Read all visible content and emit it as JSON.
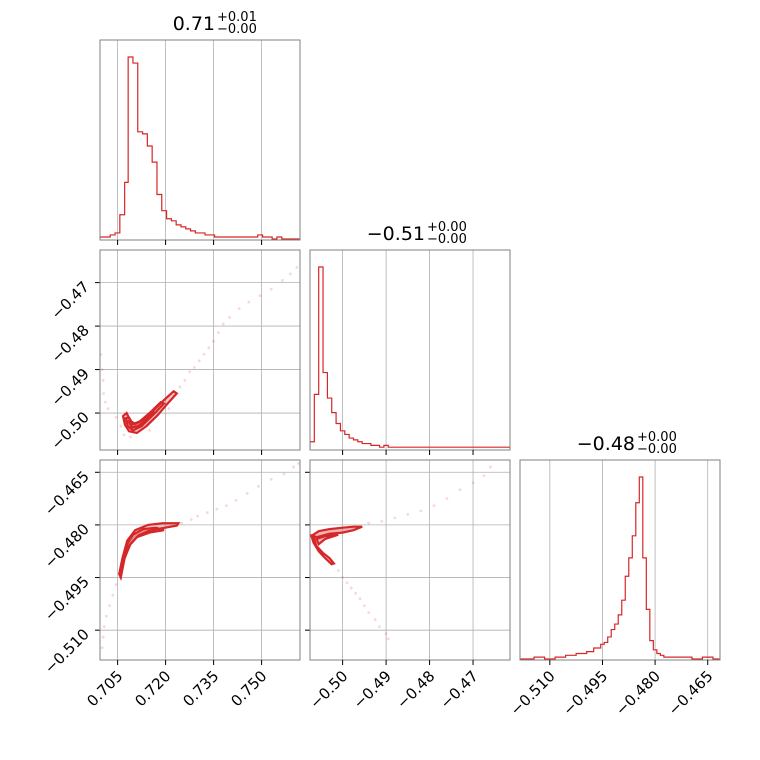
{
  "chart_data": {
    "type": "corner",
    "line_color": "#d62728",
    "grid": true,
    "panels": [
      {
        "kind": "hist",
        "row": 0,
        "col": 0,
        "title": {
          "value": "0.71",
          "plus": "+0.01",
          "minus": "−0.00"
        },
        "xlim": [
          0.6995,
          0.762
        ],
        "x_ticks": [
          0.705,
          0.72,
          0.735,
          0.75
        ],
        "x_tick_labels": [],
        "hist": {
          "bin_edges": [
            0.6995,
            0.7012,
            0.7027,
            0.7042,
            0.7057,
            0.7072,
            0.7083,
            0.7098,
            0.7113,
            0.7128,
            0.7143,
            0.7158,
            0.7173,
            0.7188,
            0.7203,
            0.7218,
            0.7233,
            0.7248,
            0.7263,
            0.7278,
            0.7293,
            0.7308,
            0.7323,
            0.7338,
            0.7353,
            0.7368,
            0.7383,
            0.7398,
            0.7413,
            0.7428,
            0.7443,
            0.7458,
            0.7473,
            0.7488,
            0.7503,
            0.7518,
            0.7533,
            0.7548,
            0.7563,
            0.762
          ],
          "counts": [
            1,
            1,
            2,
            3,
            12,
            28,
            90,
            87,
            53,
            52,
            46,
            38,
            22,
            14,
            10,
            9,
            7,
            6,
            5,
            4,
            3,
            3,
            2,
            2,
            1,
            1,
            1,
            1,
            1,
            1,
            1,
            1,
            1,
            2,
            1,
            1,
            0,
            1,
            0
          ]
        }
      },
      {
        "kind": "hist",
        "row": 1,
        "col": 1,
        "title": {
          "value": "−0.51",
          "plus": "+0.00",
          "minus": "−0.00"
        },
        "xlim": [
          -0.5075,
          -0.4615
        ],
        "x_ticks": [
          -0.5,
          -0.49,
          -0.48,
          -0.47
        ],
        "x_tick_labels": [],
        "hist": {
          "bin_edges": [
            -0.5075,
            -0.5065,
            -0.5055,
            -0.5045,
            -0.5035,
            -0.5025,
            -0.5015,
            -0.5005,
            -0.4995,
            -0.4985,
            -0.4975,
            -0.4965,
            -0.4955,
            -0.4945,
            -0.4935,
            -0.4925,
            -0.4915,
            -0.4905,
            -0.4895,
            -0.4885,
            -0.4875,
            -0.4855,
            -0.4835,
            -0.4615
          ],
          "counts": [
            4,
            30,
            100,
            42,
            28,
            20,
            14,
            10,
            8,
            6,
            5,
            4,
            3,
            3,
            2,
            2,
            1,
            2,
            1,
            1,
            1,
            1,
            1
          ]
        }
      },
      {
        "kind": "hist",
        "row": 2,
        "col": 2,
        "title": {
          "value": "−0.48",
          "plus": "+0.00",
          "minus": "−0.00"
        },
        "xlim": [
          -0.5185,
          -0.4615
        ],
        "x_ticks": [
          -0.51,
          -0.495,
          -0.48,
          -0.465
        ],
        "x_tick_labels": [
          "−0.510",
          "−0.495",
          "−0.480",
          "−0.465"
        ],
        "hist": {
          "bin_edges": [
            -0.5185,
            -0.5145,
            -0.5115,
            -0.5085,
            -0.5055,
            -0.5025,
            -0.4995,
            -0.4975,
            -0.4955,
            -0.4945,
            -0.4935,
            -0.4925,
            -0.4915,
            -0.4905,
            -0.4895,
            -0.4885,
            -0.4875,
            -0.4865,
            -0.4855,
            -0.4845,
            -0.4835,
            -0.4825,
            -0.4815,
            -0.4805,
            -0.4795,
            -0.4785,
            -0.4775,
            -0.4755,
            -0.4725,
            -0.4695,
            -0.4665,
            -0.4635,
            -0.4615
          ],
          "counts": [
            0,
            1,
            0,
            1,
            2,
            3,
            4,
            6,
            8,
            9,
            12,
            16,
            19,
            24,
            32,
            45,
            55,
            67,
            85,
            99,
            55,
            27,
            10,
            5,
            3,
            2,
            1,
            1,
            1,
            0,
            1,
            0
          ]
        }
      },
      {
        "kind": "scatter",
        "row": 1,
        "col": 0,
        "xlim": [
          0.6995,
          0.762
        ],
        "ylim": [
          -0.5085,
          -0.4625
        ],
        "x_ticks": [
          0.705,
          0.72,
          0.735,
          0.75
        ],
        "y_ticks": [
          -0.47,
          -0.48,
          -0.49,
          -0.5
        ],
        "y_tick_labels": [
          "−0.47",
          "−0.48",
          "−0.49",
          "−0.50"
        ],
        "x_tick_labels": [],
        "contour_paths": [
          [
            [
              0.7067,
              -0.5007
            ],
            [
              0.7073,
              -0.5027
            ],
            [
              0.7086,
              -0.5042
            ],
            [
              0.711,
              -0.5046
            ],
            [
              0.714,
              -0.503
            ],
            [
              0.7175,
              -0.5005
            ],
            [
              0.721,
              -0.4975
            ],
            [
              0.7235,
              -0.4955
            ],
            [
              0.7225,
              -0.495
            ],
            [
              0.7195,
              -0.497
            ],
            [
              0.716,
              -0.4995
            ],
            [
              0.713,
              -0.5015
            ],
            [
              0.7105,
              -0.5025
            ],
            [
              0.709,
              -0.5018
            ],
            [
              0.7078,
              -0.5
            ],
            [
              0.7067,
              -0.5007
            ]
          ],
          [
            [
              0.7075,
              -0.5012
            ],
            [
              0.7082,
              -0.503
            ],
            [
              0.7098,
              -0.504
            ],
            [
              0.7125,
              -0.503
            ],
            [
              0.716,
              -0.5005
            ],
            [
              0.7195,
              -0.4978
            ],
            [
              0.7185,
              -0.4975
            ],
            [
              0.715,
              -0.5
            ],
            [
              0.7118,
              -0.502
            ],
            [
              0.7098,
              -0.5025
            ],
            [
              0.7085,
              -0.501
            ],
            [
              0.7075,
              -0.5012
            ]
          ],
          [
            [
              0.7085,
              -0.502
            ],
            [
              0.7095,
              -0.5033
            ],
            [
              0.7115,
              -0.503
            ],
            [
              0.714,
              -0.5015
            ],
            [
              0.7165,
              -0.4998
            ],
            [
              0.715,
              -0.5002
            ],
            [
              0.712,
              -0.502
            ],
            [
              0.71,
              -0.5025
            ],
            [
              0.7085,
              -0.502
            ]
          ]
        ],
        "scatter_points": [
          [
            0.6998,
            -0.4865
          ],
          [
            0.7002,
            -0.49
          ],
          [
            0.7005,
            -0.4925
          ],
          [
            0.7006,
            -0.4955
          ],
          [
            0.7012,
            -0.4975
          ],
          [
            0.702,
            -0.499
          ],
          [
            0.7045,
            -0.501
          ],
          [
            0.706,
            -0.503
          ],
          [
            0.707,
            -0.505
          ],
          [
            0.709,
            -0.5055
          ],
          [
            0.715,
            -0.504
          ],
          [
            0.721,
            -0.499
          ],
          [
            0.7225,
            -0.496
          ],
          [
            0.7245,
            -0.494
          ],
          [
            0.726,
            -0.4925
          ],
          [
            0.7275,
            -0.4905
          ],
          [
            0.729,
            -0.4895
          ],
          [
            0.7305,
            -0.488
          ],
          [
            0.732,
            -0.4865
          ],
          [
            0.7335,
            -0.485
          ],
          [
            0.735,
            -0.4835
          ],
          [
            0.7365,
            -0.4815
          ],
          [
            0.738,
            -0.4795
          ],
          [
            0.74,
            -0.478
          ],
          [
            0.743,
            -0.476
          ],
          [
            0.746,
            -0.4745
          ],
          [
            0.7495,
            -0.473
          ],
          [
            0.753,
            -0.4715
          ],
          [
            0.7565,
            -0.4695
          ],
          [
            0.759,
            -0.468
          ],
          [
            0.761,
            -0.4665
          ]
        ]
      },
      {
        "kind": "scatter",
        "row": 2,
        "col": 0,
        "xlim": [
          0.6995,
          0.762
        ],
        "ylim": [
          -0.5185,
          -0.4615
        ],
        "x_ticks": [
          0.705,
          0.72,
          0.735,
          0.75
        ],
        "x_tick_labels": [
          "0.705",
          "0.720",
          "0.735",
          "0.750"
        ],
        "y_ticks": [
          -0.465,
          -0.48,
          -0.495,
          -0.51
        ],
        "y_tick_labels": [
          "−0.465",
          "−0.480",
          "−0.495",
          "−0.510"
        ],
        "contour_paths": [
          [
            [
              0.706,
              -0.495
            ],
            [
              0.7072,
              -0.4895
            ],
            [
              0.709,
              -0.4855
            ],
            [
              0.7115,
              -0.483
            ],
            [
              0.7145,
              -0.4818
            ],
            [
              0.7185,
              -0.481
            ],
            [
              0.7235,
              -0.4802
            ],
            [
              0.724,
              -0.4795
            ],
            [
              0.719,
              -0.4795
            ],
            [
              0.7145,
              -0.48
            ],
            [
              0.7105,
              -0.4815
            ],
            [
              0.708,
              -0.4845
            ],
            [
              0.7065,
              -0.4895
            ],
            [
              0.7055,
              -0.494
            ],
            [
              0.706,
              -0.495
            ]
          ],
          [
            [
              0.707,
              -0.49
            ],
            [
              0.7085,
              -0.486
            ],
            [
              0.711,
              -0.4835
            ],
            [
              0.715,
              -0.4822
            ],
            [
              0.7195,
              -0.4815
            ],
            [
              0.717,
              -0.4808
            ],
            [
              0.713,
              -0.4812
            ],
            [
              0.7098,
              -0.4828
            ],
            [
              0.708,
              -0.4855
            ],
            [
              0.7068,
              -0.4895
            ],
            [
              0.707,
              -0.49
            ]
          ]
        ],
        "scatter_points": [
          [
            0.7002,
            -0.515
          ],
          [
            0.7005,
            -0.512
          ],
          [
            0.7008,
            -0.509
          ],
          [
            0.7015,
            -0.506
          ],
          [
            0.7025,
            -0.503
          ],
          [
            0.7035,
            -0.5
          ],
          [
            0.7045,
            -0.497
          ],
          [
            0.706,
            -0.495
          ],
          [
            0.725,
            -0.4795
          ],
          [
            0.728,
            -0.4785
          ],
          [
            0.73,
            -0.4775
          ],
          [
            0.733,
            -0.4765
          ],
          [
            0.736,
            -0.4755
          ],
          [
            0.739,
            -0.4745
          ],
          [
            0.742,
            -0.473
          ],
          [
            0.7455,
            -0.471
          ],
          [
            0.749,
            -0.469
          ],
          [
            0.753,
            -0.467
          ],
          [
            0.757,
            -0.4655
          ],
          [
            0.76,
            -0.4635
          ],
          [
            0.7615,
            -0.4625
          ]
        ]
      },
      {
        "kind": "scatter",
        "row": 2,
        "col": 1,
        "xlim": [
          -0.5075,
          -0.4615
        ],
        "ylim": [
          -0.5185,
          -0.4615
        ],
        "x_ticks": [
          -0.5,
          -0.49,
          -0.48,
          -0.47
        ],
        "x_tick_labels": [
          "−0.50",
          "−0.49",
          "−0.48",
          "−0.47"
        ],
        "y_ticks": [
          -0.465,
          -0.48,
          -0.495,
          -0.51
        ],
        "y_tick_labels": [],
        "contour_paths": [
          [
            [
              -0.5068,
              -0.483
            ],
            [
              -0.506,
              -0.486
            ],
            [
              -0.5045,
              -0.488
            ],
            [
              -0.503,
              -0.4895
            ],
            [
              -0.502,
              -0.491
            ],
            [
              -0.5025,
              -0.4912
            ],
            [
              -0.504,
              -0.4895
            ],
            [
              -0.5055,
              -0.4875
            ],
            [
              -0.5067,
              -0.485
            ],
            [
              -0.5072,
              -0.483
            ],
            [
              -0.5068,
              -0.483
            ]
          ],
          [
            [
              -0.507,
              -0.483
            ],
            [
              -0.5055,
              -0.4818
            ],
            [
              -0.503,
              -0.4812
            ],
            [
              -0.5,
              -0.4808
            ],
            [
              -0.4975,
              -0.4805
            ],
            [
              -0.4955,
              -0.4805
            ],
            [
              -0.4975,
              -0.4815
            ],
            [
              -0.5,
              -0.4822
            ],
            [
              -0.503,
              -0.4825
            ],
            [
              -0.506,
              -0.4835
            ],
            [
              -0.507,
              -0.483
            ]
          ],
          [
            [
              -0.506,
              -0.484
            ],
            [
              -0.504,
              -0.4832
            ],
            [
              -0.501,
              -0.4828
            ],
            [
              -0.504,
              -0.484
            ],
            [
              -0.5055,
              -0.4855
            ],
            [
              -0.506,
              -0.484
            ]
          ]
        ],
        "scatter_points": [
          [
            -0.501,
            -0.493
          ],
          [
            -0.5,
            -0.495
          ],
          [
            -0.499,
            -0.4965
          ],
          [
            -0.498,
            -0.498
          ],
          [
            -0.497,
            -0.4995
          ],
          [
            -0.496,
            -0.501
          ],
          [
            -0.495,
            -0.503
          ],
          [
            -0.494,
            -0.505
          ],
          [
            -0.4925,
            -0.507
          ],
          [
            -0.4915,
            -0.509
          ],
          [
            -0.49,
            -0.511
          ],
          [
            -0.4895,
            -0.5125
          ],
          [
            -0.494,
            -0.4795
          ],
          [
            -0.491,
            -0.479
          ],
          [
            -0.488,
            -0.478
          ],
          [
            -0.485,
            -0.477
          ],
          [
            -0.482,
            -0.476
          ],
          [
            -0.479,
            -0.4745
          ],
          [
            -0.476,
            -0.4725
          ],
          [
            -0.473,
            -0.47
          ],
          [
            -0.47,
            -0.468
          ],
          [
            -0.4675,
            -0.466
          ],
          [
            -0.466,
            -0.4635
          ]
        ]
      }
    ]
  }
}
